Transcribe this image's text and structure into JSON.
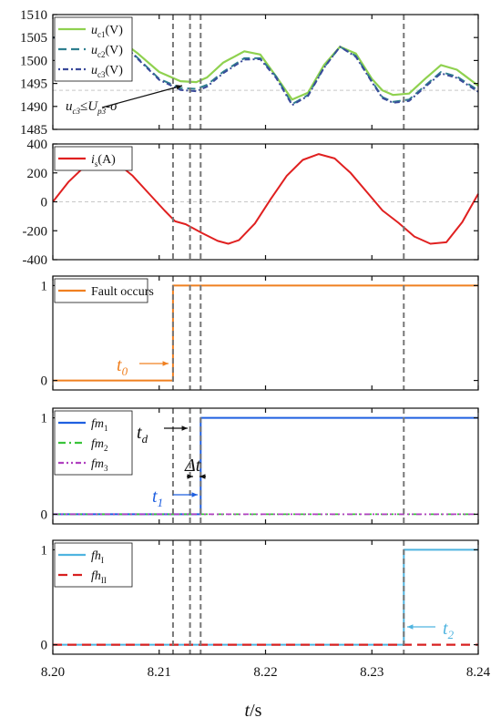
{
  "chart_data": [
    {
      "id": "voltage",
      "type": "line",
      "ylim": [
        1485,
        1510
      ],
      "yticks": [
        1485,
        1490,
        1495,
        1500,
        1505,
        1510
      ],
      "ref_line": 1493.5,
      "legend": [
        {
          "name": "u",
          "sub": "c1",
          "suffix": "(V)",
          "color": "#8fd14f",
          "dash": ""
        },
        {
          "name": "u",
          "sub": "c2",
          "suffix": "(V)",
          "color": "#2f7f8f",
          "dash": "9,5"
        },
        {
          "name": "u",
          "sub": "c3",
          "suffix": "(V)",
          "color": "#3a4a9a",
          "dash": "2,3,6,3"
        }
      ],
      "series": [
        {
          "name": "u_c1(V)",
          "color": "#8fd14f",
          "width": 2.2,
          "dash": "",
          "x": [
            8.2,
            8.203,
            8.206,
            8.208,
            8.21,
            8.212,
            8.2135,
            8.2145,
            8.216,
            8.218,
            8.2195,
            8.221,
            8.2225,
            8.224,
            8.2255,
            8.227,
            8.2285,
            8.23,
            8.231,
            8.232,
            8.2335,
            8.235,
            8.2365,
            8.238,
            8.24
          ],
          "y": [
            1505,
            1505,
            1505,
            1501.5,
            1497.5,
            1495.5,
            1495.3,
            1496.3,
            1499.5,
            1502,
            1501.3,
            1496.5,
            1491.5,
            1493,
            1499,
            1503,
            1501.5,
            1496,
            1493.5,
            1492.5,
            1492.8,
            1496,
            1499,
            1498,
            1494.5
          ]
        },
        {
          "name": "u_c2(V)",
          "color": "#2f7f8f",
          "width": 2.0,
          "dash": "9,5",
          "x": [
            8.2,
            8.203,
            8.206,
            8.208,
            8.21,
            8.212,
            8.2135,
            8.2145,
            8.216,
            8.218,
            8.2195,
            8.221,
            8.2225,
            8.224,
            8.2255,
            8.227,
            8.2285,
            8.23,
            8.231,
            8.232,
            8.2335,
            8.235,
            8.2365,
            8.238,
            8.24
          ],
          "y": [
            1505,
            1505,
            1505,
            1500.5,
            1496,
            1494,
            1493.8,
            1494.7,
            1497.5,
            1500.5,
            1500.5,
            1496.5,
            1490.5,
            1492.5,
            1498.5,
            1503,
            1501,
            1495.5,
            1492,
            1491,
            1491.5,
            1494.5,
            1497.5,
            1496.5,
            1493.5
          ]
        },
        {
          "name": "u_c3(V)",
          "color": "#3a4a9a",
          "width": 2.0,
          "dash": "2,3,6,3",
          "x": [
            8.2,
            8.203,
            8.206,
            8.208,
            8.21,
            8.212,
            8.2135,
            8.2145,
            8.216,
            8.218,
            8.2195,
            8.221,
            8.2225,
            8.224,
            8.2255,
            8.227,
            8.2285,
            8.23,
            8.231,
            8.232,
            8.2335,
            8.235,
            8.2365,
            8.238,
            8.24
          ],
          "y": [
            1505,
            1505,
            1505,
            1500.3,
            1495.8,
            1493.6,
            1493.3,
            1494.3,
            1497.2,
            1500.2,
            1500.3,
            1496.2,
            1490.3,
            1492.3,
            1498.4,
            1503,
            1500.8,
            1495.3,
            1491.8,
            1490.8,
            1491.2,
            1494.2,
            1497.2,
            1496.2,
            1493.2
          ]
        }
      ],
      "annotation": {
        "text": "u",
        "sub1": "c3",
        "rel": "≤U",
        "sub2": "p3",
        "tail": "-σ"
      }
    },
    {
      "id": "current",
      "type": "line",
      "ylim": [
        -400,
        400
      ],
      "yticks": [
        -400,
        -200,
        0,
        200,
        400
      ],
      "ref_line": 0,
      "legend": [
        {
          "name": "i",
          "sub": "s",
          "suffix": "(A)",
          "color": "#e02020",
          "dash": ""
        }
      ],
      "series": [
        {
          "name": "i_s(A)",
          "color": "#e02020",
          "width": 2.0,
          "dash": "",
          "x": [
            8.2,
            8.2015,
            8.203,
            8.2045,
            8.206,
            8.2075,
            8.209,
            8.2105,
            8.2115,
            8.2125,
            8.214,
            8.2155,
            8.2165,
            8.2175,
            8.219,
            8.2205,
            8.222,
            8.2235,
            8.225,
            8.2265,
            8.228,
            8.2295,
            8.231,
            8.2325,
            8.234,
            8.2355,
            8.237,
            8.2385,
            8.24
          ],
          "y": [
            0,
            140,
            245,
            300,
            270,
            180,
            60,
            -60,
            -135,
            -155,
            -215,
            -270,
            -290,
            -265,
            -150,
            20,
            180,
            290,
            330,
            300,
            200,
            70,
            -60,
            -145,
            -240,
            -290,
            -280,
            -140,
            55
          ]
        }
      ]
    },
    {
      "id": "fault",
      "type": "line",
      "ylim": [
        -0.1,
        1.1
      ],
      "yticks": [
        0,
        1
      ],
      "legend": [
        {
          "name": "Fault occurs",
          "sub": "",
          "suffix": "",
          "color": "#f08020",
          "dash": ""
        }
      ],
      "series": [
        {
          "name": "Fault occurs",
          "color": "#f08020",
          "width": 2.0,
          "dash": "",
          "x": [
            8.2,
            8.2113,
            8.2113,
            8.24
          ],
          "y": [
            0,
            0,
            1,
            1
          ]
        }
      ],
      "annotation": {
        "label": "t",
        "sub": "0"
      }
    },
    {
      "id": "fm",
      "type": "line",
      "ylim": [
        -0.1,
        1.1
      ],
      "yticks": [
        0,
        1
      ],
      "legend": [
        {
          "name": "fm",
          "sub": "1",
          "suffix": "",
          "color": "#1f5fe0",
          "dash": ""
        },
        {
          "name": "fm",
          "sub": "2",
          "suffix": "",
          "color": "#39c43a",
          "dash": "8,4,2,4"
        },
        {
          "name": "fm",
          "sub": "3",
          "suffix": "",
          "color": "#b040c0",
          "dash": "6,3,2,3,2,3"
        }
      ],
      "series": [
        {
          "name": "fm1",
          "color": "#1f5fe0",
          "width": 2.0,
          "dash": "",
          "x": [
            8.2,
            8.2139,
            8.2139,
            8.24
          ],
          "y": [
            0,
            0,
            1,
            1
          ]
        },
        {
          "name": "fm2",
          "color": "#39c43a",
          "width": 1.8,
          "dash": "8,4,2,4",
          "x": [
            8.2,
            8.24
          ],
          "y": [
            0,
            0
          ]
        },
        {
          "name": "fm3",
          "color": "#b040c0",
          "width": 1.8,
          "dash": "6,3,2,3,2,3",
          "x": [
            8.2,
            8.24
          ],
          "y": [
            0,
            0
          ]
        }
      ],
      "annotation": {
        "td": "t",
        "td_sub": "d",
        "dt": "Δt",
        "t1": "t",
        "t1_sub": "1"
      }
    },
    {
      "id": "fh",
      "type": "line",
      "ylim": [
        -0.1,
        1.1
      ],
      "yticks": [
        0,
        1
      ],
      "legend": [
        {
          "name": "fh",
          "sub": "I",
          "suffix": "",
          "color": "#4fb4e0",
          "dash": ""
        },
        {
          "name": "fh",
          "sub": "II",
          "suffix": "",
          "color": "#d82020",
          "dash": "10,6"
        }
      ],
      "series": [
        {
          "name": "fhI",
          "color": "#4fb4e0",
          "width": 2.0,
          "dash": "",
          "x": [
            8.2,
            8.233,
            8.233,
            8.24
          ],
          "y": [
            0,
            0,
            1,
            1
          ]
        },
        {
          "name": "fhII",
          "color": "#d82020",
          "width": 2.2,
          "dash": "10,6",
          "x": [
            8.2,
            8.24
          ],
          "y": [
            0,
            0
          ]
        }
      ],
      "annotation": {
        "label": "t",
        "sub": "2"
      }
    }
  ],
  "shared_x": {
    "xlim": [
      8.2,
      8.24
    ],
    "xticks": [
      "8.20",
      "8.21",
      "8.22",
      "8.23",
      "8.24"
    ],
    "xlabel_main": "t",
    "xlabel_unit": "/s",
    "event_lines": [
      8.2113,
      8.2129,
      8.2139,
      8.233
    ]
  }
}
